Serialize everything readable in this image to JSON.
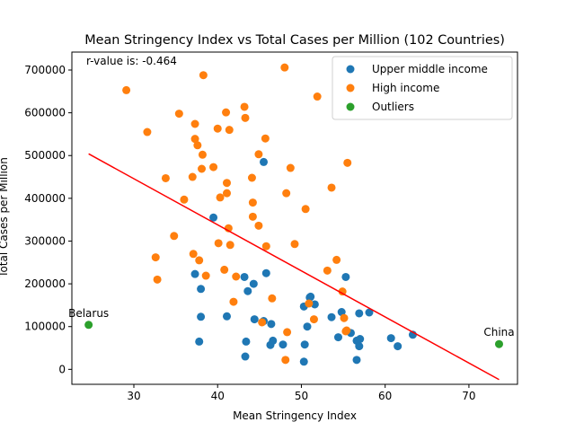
{
  "chart_data": {
    "type": "scatter",
    "title": "Mean Stringency Index vs Total Cases per Million (102 Countries)",
    "xlabel": "Mean Stringency Index",
    "ylabel": "Total Cases per Million",
    "xlim": [
      22.6,
      75.8
    ],
    "ylim": [
      -35000,
      742000
    ],
    "xticks": [
      30,
      40,
      50,
      60,
      70
    ],
    "yticks": [
      0,
      100000,
      200000,
      300000,
      400000,
      500000,
      600000,
      700000
    ],
    "ytick_labels": [
      "0",
      "100000",
      "200000",
      "300000",
      "400000",
      "500000",
      "600000",
      "700000"
    ],
    "grid": false,
    "legend_position": "top-right",
    "annotation": "r-value is: -0.464",
    "regression_line": {
      "color": "#ff0000",
      "points": [
        [
          24.6,
          504000
        ],
        [
          73.6,
          -24000
        ]
      ]
    },
    "series": [
      {
        "name": "Upper middle income",
        "color": "#1f77b4",
        "points": [
          [
            39.5,
            355000
          ],
          [
            45.5,
            485000
          ],
          [
            45.8,
            225000
          ],
          [
            37.3,
            223000
          ],
          [
            38.0,
            188000
          ],
          [
            43.2,
            216000
          ],
          [
            43.6,
            183000
          ],
          [
            44.3,
            200000
          ],
          [
            38.0,
            123000
          ],
          [
            37.8,
            65000
          ],
          [
            41.1,
            124000
          ],
          [
            43.4,
            65000
          ],
          [
            43.3,
            30000
          ],
          [
            44.4,
            117000
          ],
          [
            45.5,
            113000
          ],
          [
            46.3,
            57000
          ],
          [
            46.6,
            67000
          ],
          [
            46.4,
            106000
          ],
          [
            47.8,
            58000
          ],
          [
            50.3,
            147000
          ],
          [
            50.7,
            100000
          ],
          [
            51.1,
            170000
          ],
          [
            51.6,
            152000
          ],
          [
            51.0,
            168000
          ],
          [
            50.4,
            58000
          ],
          [
            50.3,
            18000
          ],
          [
            53.6,
            122000
          ],
          [
            54.4,
            75000
          ],
          [
            54.8,
            134000
          ],
          [
            55.3,
            216000
          ],
          [
            55.9,
            85000
          ],
          [
            56.9,
            131000
          ],
          [
            56.6,
            67000
          ],
          [
            57.0,
            71000
          ],
          [
            56.9,
            54000
          ],
          [
            56.6,
            22000
          ],
          [
            58.1,
            133000
          ],
          [
            60.7,
            73000
          ],
          [
            61.5,
            54000
          ],
          [
            63.3,
            81000
          ]
        ]
      },
      {
        "name": "High income",
        "color": "#ff7f0e",
        "points": [
          [
            29.1,
            653000
          ],
          [
            31.6,
            555000
          ],
          [
            32.6,
            262000
          ],
          [
            32.8,
            210000
          ],
          [
            33.8,
            447000
          ],
          [
            34.8,
            312000
          ],
          [
            35.4,
            598000
          ],
          [
            36.0,
            397000
          ],
          [
            37.0,
            450000
          ],
          [
            37.1,
            270000
          ],
          [
            37.3,
            574000
          ],
          [
            37.3,
            539000
          ],
          [
            37.6,
            524000
          ],
          [
            37.8,
            255000
          ],
          [
            38.1,
            469000
          ],
          [
            38.2,
            502000
          ],
          [
            38.3,
            688000
          ],
          [
            38.6,
            219000
          ],
          [
            39.5,
            473000
          ],
          [
            40.0,
            563000
          ],
          [
            40.1,
            295000
          ],
          [
            40.3,
            402000
          ],
          [
            40.8,
            233000
          ],
          [
            41.0,
            601000
          ],
          [
            41.1,
            412000
          ],
          [
            41.1,
            436000
          ],
          [
            41.3,
            330000
          ],
          [
            41.4,
            560000
          ],
          [
            41.5,
            291000
          ],
          [
            41.9,
            158000
          ],
          [
            42.2,
            217000
          ],
          [
            43.2,
            614000
          ],
          [
            43.3,
            588000
          ],
          [
            44.1,
            448000
          ],
          [
            44.2,
            390000
          ],
          [
            44.2,
            357000
          ],
          [
            44.9,
            503000
          ],
          [
            44.9,
            336000
          ],
          [
            45.3,
            110000
          ],
          [
            45.7,
            540000
          ],
          [
            45.8,
            288000
          ],
          [
            46.5,
            166000
          ],
          [
            48.0,
            706000
          ],
          [
            48.2,
            412000
          ],
          [
            48.3,
            87000
          ],
          [
            48.7,
            471000
          ],
          [
            49.2,
            293000
          ],
          [
            50.5,
            375000
          ],
          [
            50.9,
            154000
          ],
          [
            51.5,
            117000
          ],
          [
            51.9,
            638000
          ],
          [
            53.1,
            231000
          ],
          [
            53.6,
            425000
          ],
          [
            54.2,
            256000
          ],
          [
            54.9,
            182000
          ],
          [
            55.1,
            120000
          ],
          [
            55.3,
            89000
          ],
          [
            55.4,
            91000
          ],
          [
            55.5,
            483000
          ],
          [
            48.1,
            22000
          ]
        ]
      },
      {
        "name": "Outliers",
        "color": "#2ca02c",
        "points": [
          [
            24.6,
            104000
          ],
          [
            73.6,
            59000
          ]
        ]
      }
    ],
    "point_labels": [
      {
        "text": "Belarus",
        "x": 24.6,
        "y": 104000
      },
      {
        "text": "China",
        "x": 73.6,
        "y": 59000
      }
    ]
  }
}
